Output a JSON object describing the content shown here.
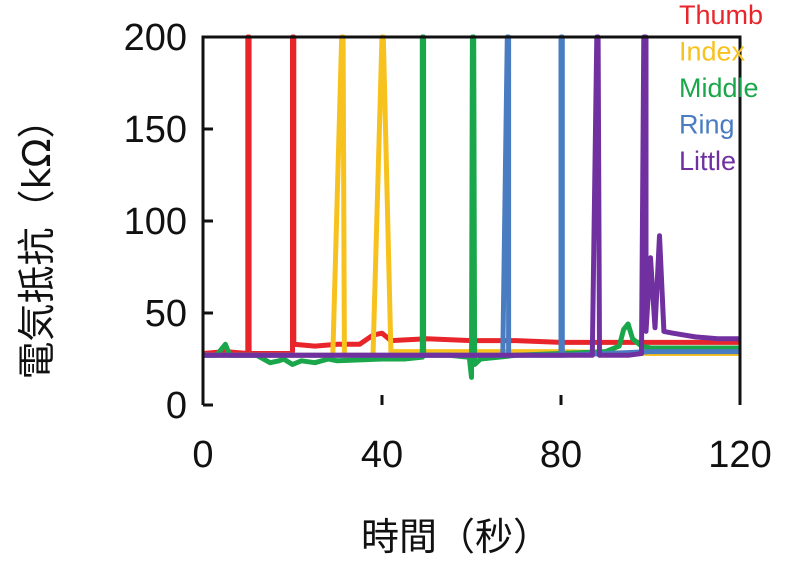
{
  "chart_data": {
    "type": "line",
    "xlabel": "時間（秒）",
    "ylabel": "電気抵抗（kΩ）",
    "xlim": [
      0,
      120
    ],
    "ylim": [
      0,
      200
    ],
    "xticks": [
      0,
      40,
      80,
      120
    ],
    "yticks": [
      0,
      50,
      100,
      150,
      200
    ],
    "grid": false,
    "legend_position": "top-right",
    "series": [
      {
        "name": "Thumb",
        "color": "#e8252a",
        "points": [
          [
            0,
            28
          ],
          [
            5,
            29
          ],
          [
            10,
            28
          ],
          [
            10,
            200
          ],
          [
            10.3,
            200
          ],
          [
            10.3,
            28
          ],
          [
            16,
            28
          ],
          [
            20,
            28
          ],
          [
            20,
            200
          ],
          [
            20.3,
            200
          ],
          [
            20.3,
            33
          ],
          [
            25,
            32
          ],
          [
            30,
            33
          ],
          [
            35,
            33
          ],
          [
            38,
            38
          ],
          [
            40,
            39
          ],
          [
            42,
            35
          ],
          [
            50,
            36
          ],
          [
            60,
            35
          ],
          [
            70,
            35
          ],
          [
            80,
            34
          ],
          [
            90,
            34
          ],
          [
            100,
            34
          ],
          [
            110,
            34
          ],
          [
            120,
            34
          ]
        ]
      },
      {
        "name": "Index",
        "color": "#f7c11e",
        "points": [
          [
            0,
            27
          ],
          [
            20,
            27
          ],
          [
            29,
            27
          ],
          [
            31,
            200
          ],
          [
            31.3,
            200
          ],
          [
            31.6,
            27
          ],
          [
            38,
            27
          ],
          [
            40,
            200
          ],
          [
            40.3,
            200
          ],
          [
            42,
            29
          ],
          [
            60,
            29
          ],
          [
            80,
            29
          ],
          [
            100,
            28
          ],
          [
            120,
            28
          ]
        ]
      },
      {
        "name": "Middle",
        "color": "#1aa64a",
        "points": [
          [
            0,
            27
          ],
          [
            3,
            27
          ],
          [
            5,
            33
          ],
          [
            6,
            27
          ],
          [
            12,
            27
          ],
          [
            15,
            23
          ],
          [
            17,
            24
          ],
          [
            18,
            25
          ],
          [
            20,
            22
          ],
          [
            22,
            24
          ],
          [
            25,
            23
          ],
          [
            28,
            25
          ],
          [
            30,
            24
          ],
          [
            40,
            25
          ],
          [
            45,
            25
          ],
          [
            49,
            26
          ],
          [
            49,
            200
          ],
          [
            49.3,
            200
          ],
          [
            49.3,
            27
          ],
          [
            55,
            27
          ],
          [
            59.5,
            26
          ],
          [
            60,
            15
          ],
          [
            60.2,
            200
          ],
          [
            60.5,
            200
          ],
          [
            60.7,
            22
          ],
          [
            62,
            25
          ],
          [
            70,
            27
          ],
          [
            80,
            28
          ],
          [
            90,
            29
          ],
          [
            93,
            32
          ],
          [
            94,
            41
          ],
          [
            95,
            44
          ],
          [
            96,
            36
          ],
          [
            98,
            32
          ],
          [
            100,
            31
          ],
          [
            120,
            31
          ]
        ]
      },
      {
        "name": "Ring",
        "color": "#4a7cc2",
        "points": [
          [
            0,
            27
          ],
          [
            20,
            27
          ],
          [
            40,
            27
          ],
          [
            60,
            27
          ],
          [
            67,
            27
          ],
          [
            68,
            200
          ],
          [
            68.3,
            200
          ],
          [
            68.3,
            27
          ],
          [
            75,
            27
          ],
          [
            80,
            27
          ],
          [
            80,
            200
          ],
          [
            80.3,
            200
          ],
          [
            80.3,
            27
          ],
          [
            90,
            28
          ],
          [
            100,
            29
          ],
          [
            120,
            29
          ]
        ]
      },
      {
        "name": "Little",
        "color": "#7030a0",
        "points": [
          [
            0,
            27
          ],
          [
            20,
            27
          ],
          [
            40,
            27
          ],
          [
            60,
            27
          ],
          [
            80,
            27
          ],
          [
            87,
            27
          ],
          [
            88,
            200
          ],
          [
            88.3,
            200
          ],
          [
            88.6,
            27
          ],
          [
            95,
            27
          ],
          [
            98,
            28
          ],
          [
            98.5,
            200
          ],
          [
            99,
            200
          ],
          [
            99,
            40
          ],
          [
            100,
            80
          ],
          [
            101,
            42
          ],
          [
            102,
            92
          ],
          [
            103,
            40
          ],
          [
            105,
            39
          ],
          [
            110,
            37
          ],
          [
            115,
            36
          ],
          [
            120,
            36
          ]
        ]
      }
    ]
  }
}
